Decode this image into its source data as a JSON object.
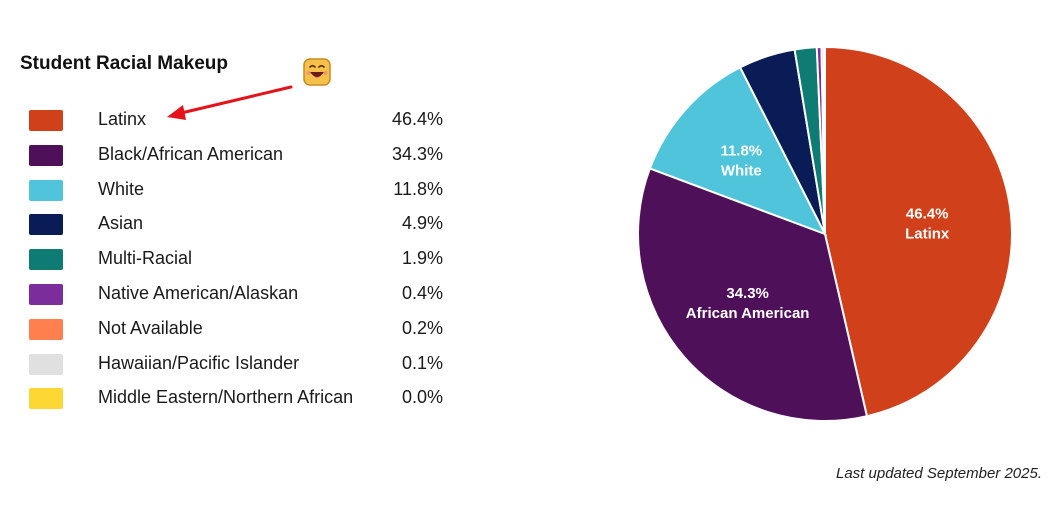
{
  "header": {
    "title": "Student Racial Makeup"
  },
  "footer": {
    "note": "Last updated September 2025."
  },
  "chart_data": {
    "type": "pie",
    "title": "Student Racial Makeup",
    "legend_position": "left",
    "slices": [
      {
        "label": "Latinx",
        "value": 46.4,
        "display": "46.4%",
        "color": "#D0401A",
        "pie_label": [
          "46.4%",
          "Latinx"
        ]
      },
      {
        "label": "Black/African American",
        "value": 34.3,
        "display": "34.3%",
        "color": "#4E1159",
        "pie_label": [
          "34.3%",
          "African American"
        ]
      },
      {
        "label": "White",
        "value": 11.8,
        "display": "11.8%",
        "color": "#50C4DA",
        "pie_label": [
          "11.8%",
          "White"
        ]
      },
      {
        "label": "Asian",
        "value": 4.9,
        "display": "4.9%",
        "color": "#0A1C55",
        "pie_label": null
      },
      {
        "label": "Multi-Racial",
        "value": 1.9,
        "display": "1.9%",
        "color": "#0E7C73",
        "pie_label": null
      },
      {
        "label": "Native American/Alaskan",
        "value": 0.4,
        "display": "0.4%",
        "color": "#7B2D9C",
        "pie_label": null
      },
      {
        "label": "Not Available",
        "value": 0.2,
        "display": "0.2%",
        "color": "#FF7F4F",
        "pie_label": null
      },
      {
        "label": "Hawaiian/Pacific Islander",
        "value": 0.1,
        "display": "0.1%",
        "color": "#E0E0E0",
        "pie_label": null
      },
      {
        "label": "Middle Eastern/Northern African",
        "value": 0.0,
        "display": "0.0%",
        "color": "#FDD835",
        "pie_label": null
      }
    ]
  },
  "annotations": {
    "arrow_color": "#E5121A",
    "emoji_icon": "smiling-face-icon"
  }
}
